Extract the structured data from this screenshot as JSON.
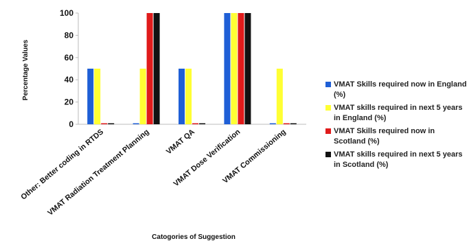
{
  "chart_data": {
    "type": "bar",
    "categories": [
      "Other: Better coding in RTDS",
      "VMAT Radiation Treatment Planning",
      "VMAT QA",
      "VMAT Dose Verification",
      "VMAT Commissioning"
    ],
    "series": [
      {
        "name": "VMAT Skills required now in England (%)",
        "color": "#1f5fd6",
        "values": [
          50,
          0,
          50,
          100,
          0
        ]
      },
      {
        "name": "VMAT skills required in next 5 years in England (%)",
        "color": "#ffff33",
        "values": [
          50,
          50,
          50,
          100,
          50
        ]
      },
      {
        "name": "VMAT Skills required now in Scotland (%)",
        "color": "#e01b1b",
        "values": [
          0,
          100,
          0,
          100,
          0
        ]
      },
      {
        "name": "VMAT skills required in next 5 years in Scotland (%)",
        "color": "#111111",
        "values": [
          0,
          100,
          0,
          100,
          0
        ]
      }
    ],
    "ylabel": "Percentage Values",
    "xlabel": "Catogories of Suggestion",
    "ylim": [
      0,
      100
    ],
    "yticks": [
      0,
      20,
      40,
      60,
      80,
      100
    ],
    "grid": false,
    "legend": "right"
  }
}
